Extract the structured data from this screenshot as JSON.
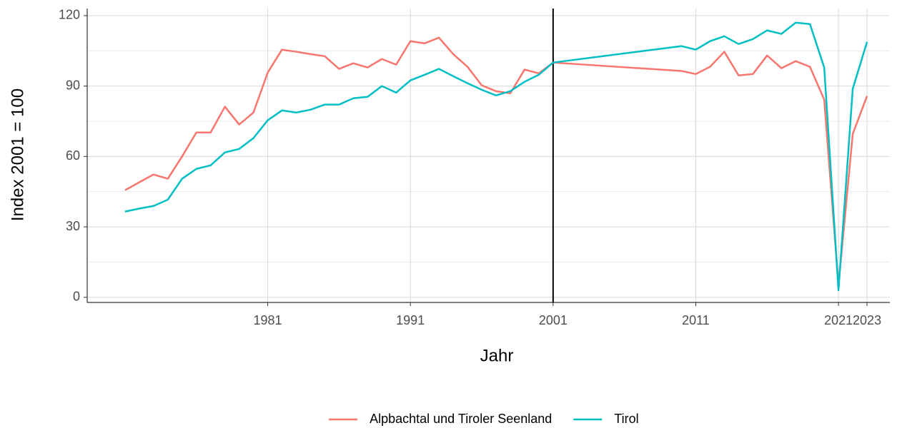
{
  "chart_data": {
    "type": "line",
    "x_label": "Jahr",
    "y_label": "Index 2001 = 100",
    "x": [
      1971,
      1972,
      1973,
      1974,
      1975,
      1976,
      1977,
      1978,
      1979,
      1980,
      1981,
      1982,
      1983,
      1984,
      1985,
      1986,
      1987,
      1988,
      1989,
      1990,
      1991,
      1992,
      1993,
      1994,
      1995,
      1996,
      1997,
      1998,
      1999,
      2000,
      2001,
      2010,
      2011,
      2012,
      2013,
      2014,
      2015,
      2016,
      2017,
      2018,
      2019,
      2020,
      2021,
      2022,
      2023
    ],
    "series": [
      {
        "name": "Alpbachtal und Tiroler Seenland",
        "color": "#F8766D",
        "values": [
          45.6,
          49,
          52.3,
          50.5,
          60,
          70.2,
          70.2,
          81.2,
          73.6,
          78.7,
          95.7,
          105.5,
          104.6,
          103.6,
          102.7,
          97.3,
          99.7,
          97.9,
          101.5,
          99.1,
          109.1,
          108.2,
          110.6,
          103.6,
          98.2,
          90.3,
          87.8,
          86.9,
          97.0,
          95.4,
          100,
          96.4,
          95.1,
          98.2,
          104.6,
          94.5,
          95.1,
          103.0,
          97.6,
          100.6,
          98.2,
          84.2,
          5.2,
          69.6,
          85.7
        ]
      },
      {
        "name": "Tirol",
        "color": "#00BFC4",
        "values": [
          36.5,
          37.8,
          38.9,
          41.6,
          50.5,
          54.7,
          56.2,
          61.7,
          63.2,
          67.8,
          75.4,
          79.6,
          78.7,
          79.9,
          82.1,
          82.1,
          84.8,
          85.4,
          90.0,
          87.2,
          92.4,
          94.8,
          97.3,
          94.2,
          91.2,
          88.4,
          86.0,
          87.8,
          91.8,
          94.8,
          100,
          107.0,
          105.5,
          109.1,
          111.2,
          107.9,
          110.0,
          113.7,
          112.2,
          117.0,
          116.4,
          97.9,
          3.0,
          88.8,
          108.8
        ]
      }
    ],
    "xlim": [
      1968.35,
      2024.6
    ],
    "xticks": [
      1981,
      1991,
      2001,
      2011,
      2021,
      2023
    ],
    "ylim": [
      -2.2,
      123
    ],
    "yticks": [
      0,
      30,
      60,
      90,
      120
    ],
    "vline": 2001,
    "grid": true,
    "legend": "bottom"
  }
}
